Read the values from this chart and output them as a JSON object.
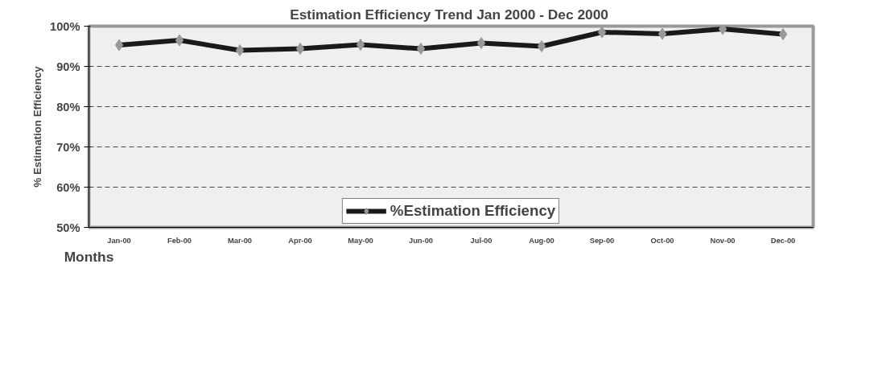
{
  "chart_data": {
    "type": "line",
    "title": "Estimation Efficiency  Trend Jan 2000 - Dec 2000",
    "xlabel": "Months",
    "ylabel": "% Estimation Efficiency",
    "categories": [
      "Jan-00",
      "Feb-00",
      "Mar-00",
      "Apr-00",
      "May-00",
      "Jun-00",
      "Jul-00",
      "Aug-00",
      "Sep-00",
      "Oct-00",
      "Nov-00",
      "Dec-00"
    ],
    "series": [
      {
        "name": "%Estimation Efficiency",
        "color": "#1a1a1a",
        "values": [
          95.3,
          96.5,
          94.0,
          94.4,
          95.4,
          94.4,
          95.8,
          95.0,
          98.5,
          98.1,
          99.3,
          98.0
        ]
      }
    ],
    "ylim": [
      50,
      100
    ],
    "yticks": [
      {
        "value": 50,
        "label": "50%"
      },
      {
        "value": 60,
        "label": "60%"
      },
      {
        "value": 70,
        "label": "70%"
      },
      {
        "value": 80,
        "label": "80%"
      },
      {
        "value": 90,
        "label": "90%"
      },
      {
        "value": 100,
        "label": "100%"
      }
    ],
    "grid": "y",
    "legend": "bottom",
    "marker": "diamond",
    "line_style": "solid"
  }
}
